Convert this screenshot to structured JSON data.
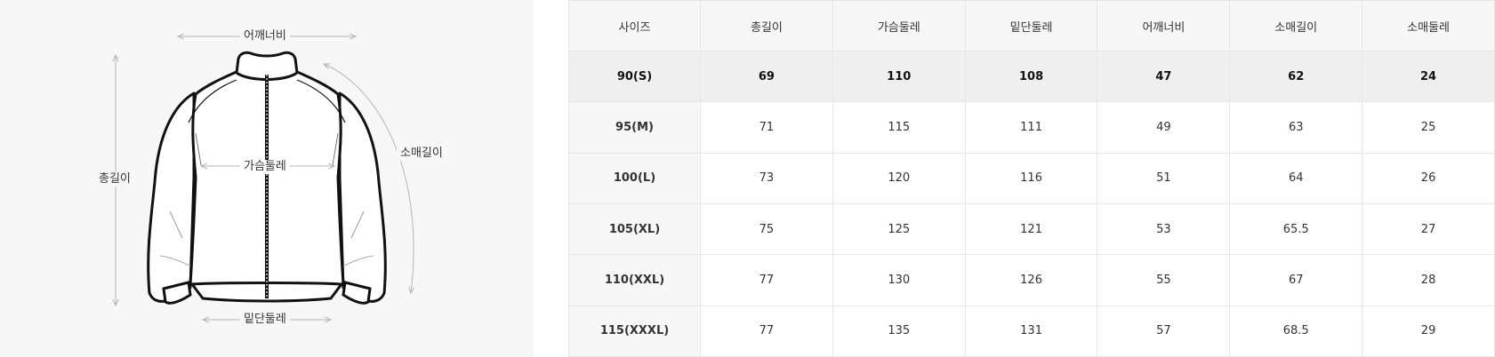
{
  "diagram": {
    "labels": {
      "shoulder": "어깨너비",
      "total_length": "총길이",
      "chest": "가슴둘레",
      "sleeve": "소매길이",
      "hem": "밑단둘레"
    }
  },
  "table": {
    "headers": [
      "사이즈",
      "총길이",
      "가슴둘레",
      "밑단둘레",
      "어깨너비",
      "소매길이",
      "소매둘레"
    ],
    "rows": [
      {
        "size": "90(S)",
        "values": [
          "69",
          "110",
          "108",
          "47",
          "62",
          "24"
        ],
        "highlighted": true
      },
      {
        "size": "95(M)",
        "values": [
          "71",
          "115",
          "111",
          "49",
          "63",
          "25"
        ],
        "highlighted": false
      },
      {
        "size": "100(L)",
        "values": [
          "73",
          "120",
          "116",
          "51",
          "64",
          "26"
        ],
        "highlighted": false
      },
      {
        "size": "105(XL)",
        "values": [
          "75",
          "125",
          "121",
          "53",
          "65.5",
          "27"
        ],
        "highlighted": false
      },
      {
        "size": "110(XXL)",
        "values": [
          "77",
          "130",
          "126",
          "55",
          "67",
          "28"
        ],
        "highlighted": false
      },
      {
        "size": "115(XXXL)",
        "values": [
          "77",
          "135",
          "131",
          "57",
          "68.5",
          "29"
        ],
        "highlighted": false
      }
    ]
  },
  "colors": {
    "panel_bg": "#f7f7f7",
    "highlight_row": "#efefef",
    "border": "#e6e6e6",
    "guide_line": "#b5b5b5"
  }
}
